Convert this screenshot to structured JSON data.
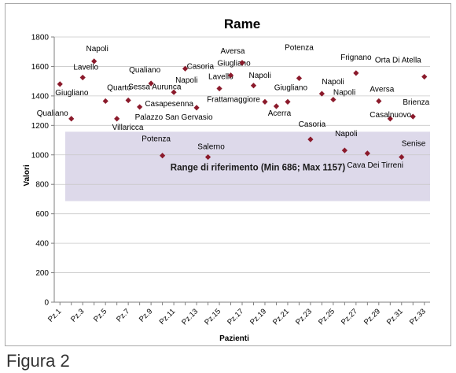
{
  "caption": "Figura 2",
  "chart_data": {
    "type": "scatter",
    "title": "Rame",
    "xlabel": "Pazienti",
    "ylabel": "Valori",
    "ylim": [
      0,
      1800
    ],
    "yticks": [
      0,
      200,
      400,
      600,
      800,
      1000,
      1200,
      1400,
      1600,
      1800
    ],
    "categories": [
      "Pz.1",
      "Pz.2",
      "Pz.3",
      "Pz.4",
      "Pz.5",
      "Pz.6",
      "Pz.7",
      "Pz.8",
      "Pz.9",
      "Pz.10",
      "Pz.11",
      "Pz.12",
      "Pz.13",
      "Pz.14",
      "Pz.15",
      "Pz.16",
      "Pz.17",
      "Pz.18",
      "Pz.19",
      "Pz.20",
      "Pz.21",
      "Pz.22",
      "Pz.23",
      "Pz.24",
      "Pz.25",
      "Pz.26",
      "Pz.27",
      "Pz.28",
      "Pz.29",
      "Pz.30",
      "Pz.31",
      "Pz.32",
      "Pz.33"
    ],
    "tick_labels_shown": [
      "Pz.1",
      "Pz.3",
      "Pz.5",
      "Pz.7",
      "Pz.9",
      "Pz.11",
      "Pz.13",
      "Pz.15",
      "Pz.17",
      "Pz.19",
      "Pz.21",
      "Pz.23",
      "Pz.25",
      "Pz.27",
      "Pz.29",
      "Pz.31",
      "Pz.33"
    ],
    "grid": "horizontal",
    "marker_color": "#8b1a2b",
    "reference_range": {
      "min": 686,
      "max": 1157,
      "label": "Range di riferimento (Min 686; Max 1157)",
      "color": "#ddd9ea"
    },
    "points": [
      {
        "x": "Pz.1",
        "y": 1480,
        "label": "Giugliano"
      },
      {
        "x": "Pz.2",
        "y": 1245,
        "label": "Qualiano"
      },
      {
        "x": "Pz.3",
        "y": 1525,
        "label": "Lavello"
      },
      {
        "x": "Pz.4",
        "y": 1635,
        "label": "Napoli"
      },
      {
        "x": "Pz.5",
        "y": 1365,
        "label": "Quarto"
      },
      {
        "x": "Pz.6",
        "y": 1245,
        "label": "Villaricca"
      },
      {
        "x": "Pz.7",
        "y": 1370,
        "label": "Sessa Aurunca"
      },
      {
        "x": "Pz.8",
        "y": 1325,
        "label": "Palazzo San Gervasio"
      },
      {
        "x": "Pz.9",
        "y": 1485,
        "label": "Qualiano"
      },
      {
        "x": "Pz.10",
        "y": 995,
        "label": "Potenza"
      },
      {
        "x": "Pz.11",
        "y": 1425,
        "label": "Napoli"
      },
      {
        "x": "Pz.12",
        "y": 1585,
        "label": "Casoria"
      },
      {
        "x": "Pz.13",
        "y": 1320,
        "label": "Casapesenna"
      },
      {
        "x": "Pz.14",
        "y": 985,
        "label": "Salerno"
      },
      {
        "x": "Pz.15",
        "y": 1450,
        "label": "Lavello"
      },
      {
        "x": "Pz.16",
        "y": 1540,
        "label": "Giugliano"
      },
      {
        "x": "Pz.17",
        "y": 1625,
        "label": "Aversa"
      },
      {
        "x": "Pz.18",
        "y": 1470,
        "label": "Napoli"
      },
      {
        "x": "Pz.19",
        "y": 1360,
        "label": "Frattamaggiore"
      },
      {
        "x": "Pz.20",
        "y": 1330,
        "label": "Acerra"
      },
      {
        "x": "Pz.21",
        "y": 1360,
        "label": "Giugliano"
      },
      {
        "x": "Pz.22",
        "y": 1520,
        "label": "Potenza"
      },
      {
        "x": "Pz.23",
        "y": 1105,
        "label": "Casoria"
      },
      {
        "x": "Pz.24",
        "y": 1415,
        "label": "Napoli"
      },
      {
        "x": "Pz.25",
        "y": 1375,
        "label": "Napoli"
      },
      {
        "x": "Pz.26",
        "y": 1030,
        "label": "Napoli"
      },
      {
        "x": "Pz.27",
        "y": 1555,
        "label": "Frignano"
      },
      {
        "x": "Pz.28",
        "y": 1010,
        "label": "Cava Dei Tirreni"
      },
      {
        "x": "Pz.29",
        "y": 1365,
        "label": "Aversa"
      },
      {
        "x": "Pz.30",
        "y": 1245,
        "label": "Casalnuovo"
      },
      {
        "x": "Pz.31",
        "y": 985,
        "label": "Senise"
      },
      {
        "x": "Pz.32",
        "y": 1260,
        "label": "Brienza"
      },
      {
        "x": "Pz.33",
        "y": 1530,
        "label": "Orta Di Atella"
      }
    ]
  }
}
